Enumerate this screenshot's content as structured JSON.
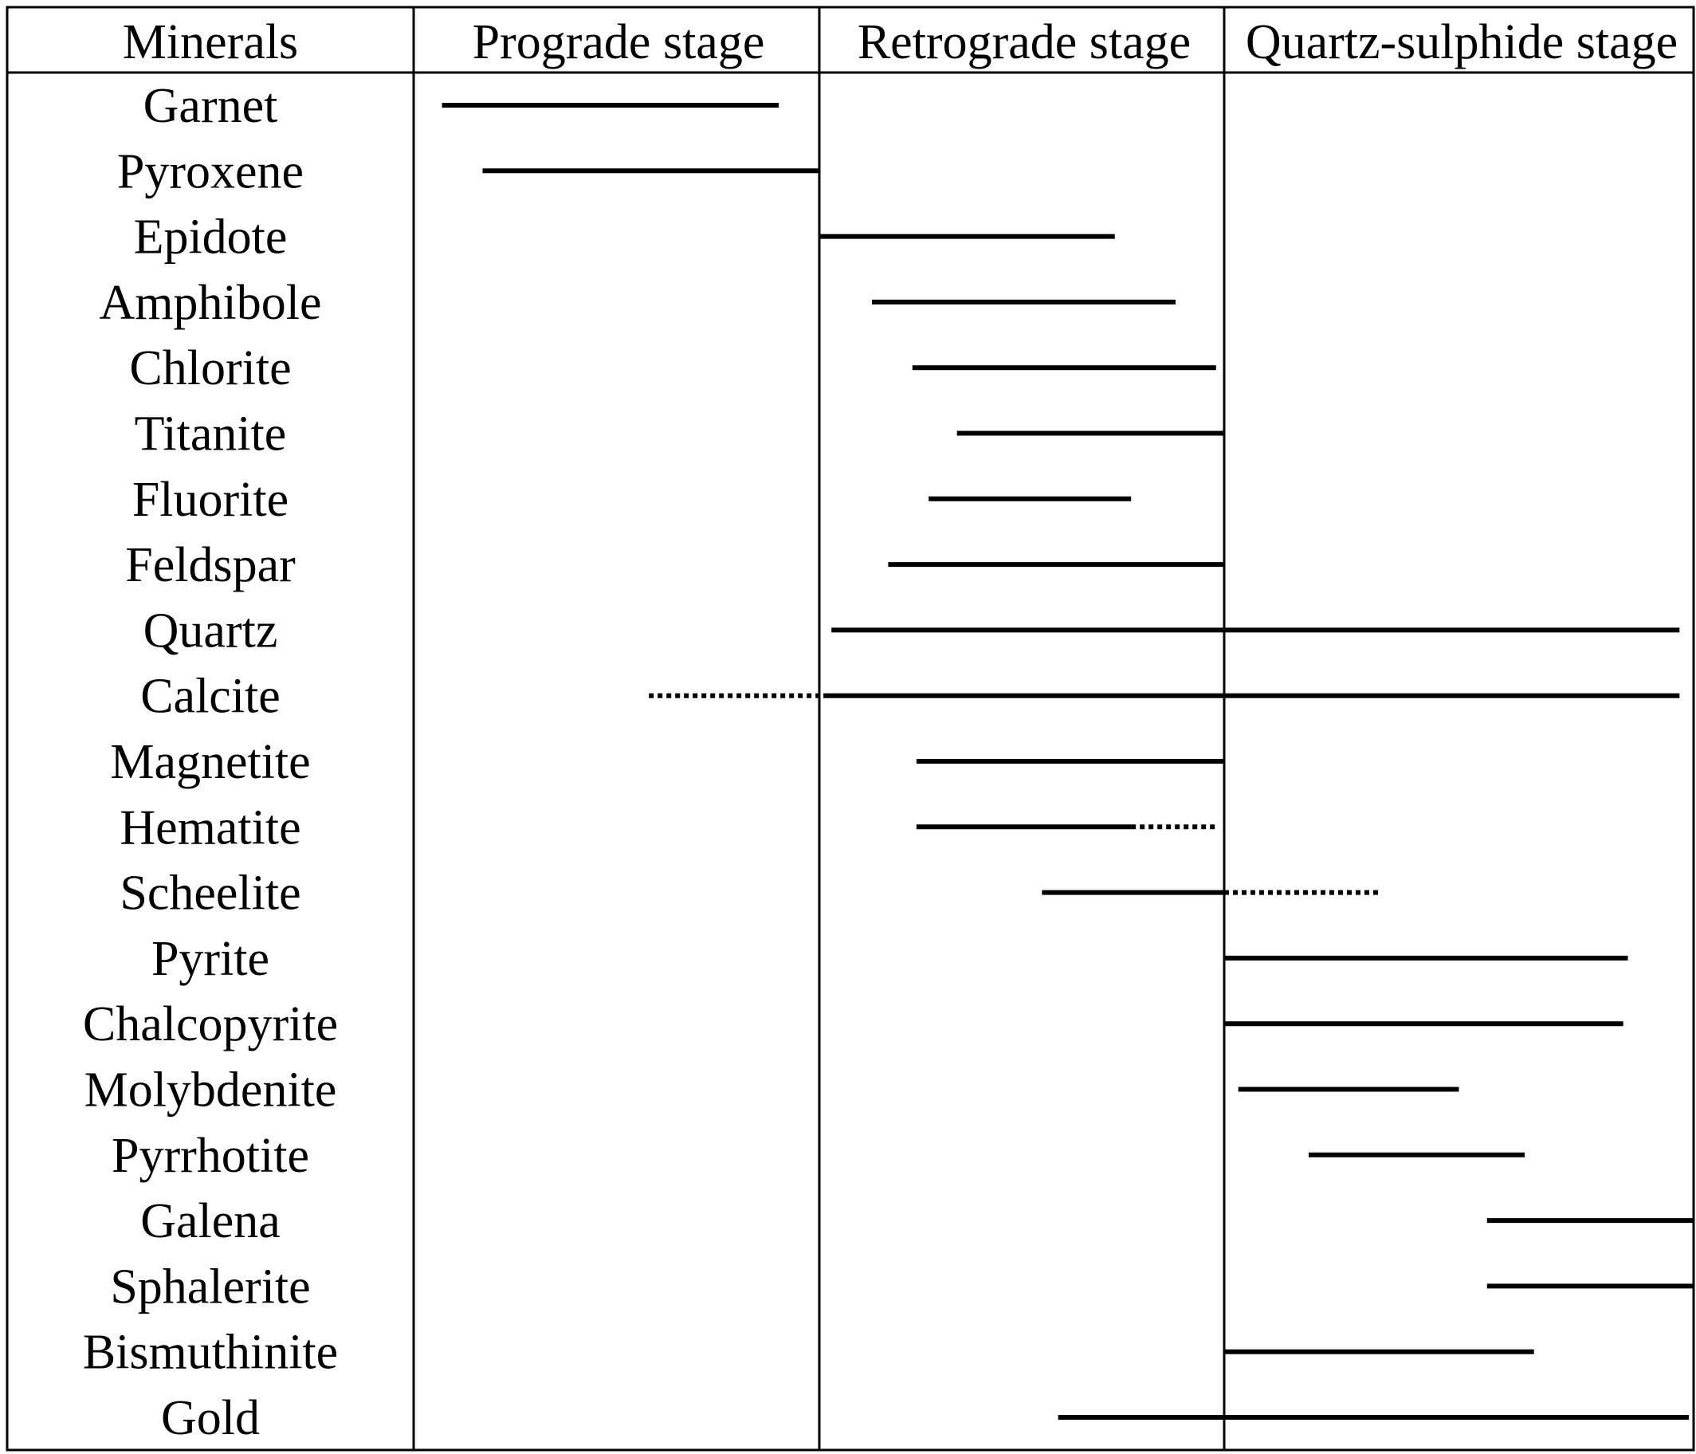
{
  "chart_data": {
    "type": "table",
    "column_headers": {
      "minerals": "Minerals",
      "stages": [
        "Prograde stage",
        "Retrograde stage",
        "Quartz-sulphide stage"
      ]
    },
    "x_units": "stage fraction (0 = start of Prograde stage, 3 = end of Quartz-sulphide stage)",
    "legend": "none",
    "grid": "vertical stage dividers only",
    "line_styles": {
      "solid": "solid",
      "dotted": "dotted"
    },
    "colors": {
      "line": "#000000",
      "text": "#000000",
      "border": "#000000",
      "background": "#ffffff"
    },
    "minerals": [
      {
        "name": "Garnet",
        "segments": [
          {
            "start": 0.07,
            "end": 0.9,
            "style": "solid"
          }
        ]
      },
      {
        "name": "Pyroxene",
        "segments": [
          {
            "start": 0.17,
            "end": 1.0,
            "style": "solid"
          }
        ]
      },
      {
        "name": "Epidote",
        "segments": [
          {
            "start": 1.0,
            "end": 1.73,
            "style": "solid"
          }
        ]
      },
      {
        "name": "Amphibole",
        "segments": [
          {
            "start": 1.13,
            "end": 1.88,
            "style": "solid"
          }
        ]
      },
      {
        "name": "Chlorite",
        "segments": [
          {
            "start": 1.23,
            "end": 1.98,
            "style": "solid"
          }
        ]
      },
      {
        "name": "Titanite",
        "segments": [
          {
            "start": 1.34,
            "end": 2.0,
            "style": "solid"
          }
        ]
      },
      {
        "name": "Fluorite",
        "segments": [
          {
            "start": 1.27,
            "end": 1.77,
            "style": "solid"
          }
        ]
      },
      {
        "name": "Feldspar",
        "segments": [
          {
            "start": 1.17,
            "end": 2.0,
            "style": "solid"
          }
        ]
      },
      {
        "name": "Quartz",
        "segments": [
          {
            "start": 1.03,
            "end": 2.97,
            "style": "solid"
          }
        ]
      },
      {
        "name": "Calcite",
        "segments": [
          {
            "start": 0.58,
            "end": 1.01,
            "style": "dotted"
          },
          {
            "start": 1.01,
            "end": 2.97,
            "style": "solid"
          }
        ]
      },
      {
        "name": "Magnetite",
        "segments": [
          {
            "start": 1.24,
            "end": 2.0,
            "style": "solid"
          }
        ]
      },
      {
        "name": "Hematite",
        "segments": [
          {
            "start": 1.24,
            "end": 1.77,
            "style": "solid"
          },
          {
            "start": 1.77,
            "end": 1.98,
            "style": "dotted"
          }
        ]
      },
      {
        "name": "Scheelite",
        "segments": [
          {
            "start": 1.55,
            "end": 2.0,
            "style": "solid"
          },
          {
            "start": 2.0,
            "end": 2.33,
            "style": "dotted"
          }
        ]
      },
      {
        "name": "Pyrite",
        "segments": [
          {
            "start": 2.0,
            "end": 2.86,
            "style": "solid"
          }
        ]
      },
      {
        "name": "Chalcopyrite",
        "segments": [
          {
            "start": 2.0,
            "end": 2.85,
            "style": "solid"
          }
        ]
      },
      {
        "name": "Molybdenite",
        "segments": [
          {
            "start": 2.03,
            "end": 2.5,
            "style": "solid"
          }
        ]
      },
      {
        "name": "Pyrrhotite",
        "segments": [
          {
            "start": 2.18,
            "end": 2.64,
            "style": "solid"
          }
        ]
      },
      {
        "name": "Galena",
        "segments": [
          {
            "start": 2.56,
            "end": 3.0,
            "style": "solid"
          }
        ]
      },
      {
        "name": "Sphalerite",
        "segments": [
          {
            "start": 2.56,
            "end": 3.0,
            "style": "solid"
          }
        ]
      },
      {
        "name": "Bismuthinite",
        "segments": [
          {
            "start": 2.0,
            "end": 2.66,
            "style": "solid"
          }
        ]
      },
      {
        "name": "Gold",
        "segments": [
          {
            "start": 1.59,
            "end": 2.99,
            "style": "solid"
          }
        ]
      }
    ]
  }
}
